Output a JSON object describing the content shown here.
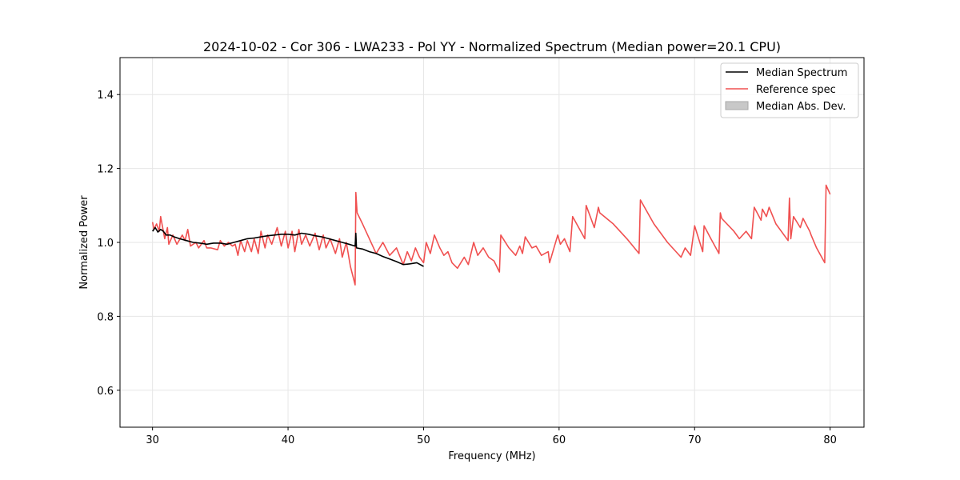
{
  "chart_data": {
    "type": "line",
    "title": "2024-10-02 - Cor 306 - LWA233 - Pol YY - Normalized Spectrum (Median power=20.1 CPU)",
    "xlabel": "Frequency (MHz)",
    "ylabel": "Normalized Power",
    "xlim": [
      27.6,
      82.5
    ],
    "ylim": [
      0.5,
      1.5
    ],
    "xticks": [
      30,
      40,
      50,
      60,
      70,
      80
    ],
    "xtick_labels": [
      "30",
      "40",
      "50",
      "60",
      "70",
      "80"
    ],
    "yticks": [
      0.6,
      0.8,
      1.0,
      1.2,
      1.4
    ],
    "ytick_labels": [
      "0.6",
      "0.8",
      "1.0",
      "1.2",
      "1.4"
    ],
    "grid": true,
    "legend": {
      "placement": "top-right",
      "entries": [
        "Median Spectrum",
        "Reference spec",
        "Median Abs. Dev."
      ]
    },
    "series": [
      {
        "name": "Median Spectrum",
        "color": "#000000",
        "x": [
          30.0,
          30.2,
          30.4,
          30.6,
          30.8,
          31.0,
          31.3,
          31.6,
          32.0,
          32.5,
          33.0,
          33.5,
          34.0,
          34.5,
          35.0,
          35.5,
          36.0,
          36.5,
          37.0,
          37.5,
          38.0,
          38.5,
          39.0,
          39.5,
          40.0,
          40.5,
          41.0,
          41.5,
          42.0,
          42.5,
          43.0,
          43.5,
          44.0,
          44.5,
          44.95,
          45.0,
          45.05,
          45.5,
          46.0,
          46.5,
          47.0,
          47.5,
          48.0,
          48.5,
          49.0,
          49.5,
          50.0
        ],
        "y": [
          1.03,
          1.04,
          1.028,
          1.035,
          1.03,
          1.02,
          1.02,
          1.015,
          1.01,
          1.005,
          1.0,
          0.998,
          0.995,
          0.998,
          0.998,
          0.995,
          1.0,
          1.005,
          1.01,
          1.012,
          1.015,
          1.018,
          1.02,
          1.022,
          1.022,
          1.02,
          1.025,
          1.022,
          1.018,
          1.015,
          1.01,
          1.005,
          1.0,
          0.995,
          0.99,
          1.025,
          0.985,
          0.982,
          0.975,
          0.97,
          0.962,
          0.955,
          0.948,
          0.94,
          0.942,
          0.945,
          0.935
        ]
      },
      {
        "name": "Reference spec",
        "color": "#f05050",
        "x": [
          30.0,
          30.1,
          30.3,
          30.5,
          30.6,
          30.9,
          31.1,
          31.2,
          31.5,
          31.8,
          32.2,
          32.4,
          32.6,
          32.8,
          33.2,
          33.4,
          33.8,
          34.0,
          34.3,
          34.8,
          35.0,
          35.3,
          35.6,
          35.9,
          36.1,
          36.3,
          36.5,
          36.8,
          37.0,
          37.3,
          37.5,
          37.8,
          38.0,
          38.3,
          38.5,
          38.8,
          39.2,
          39.5,
          39.8,
          40.0,
          40.3,
          40.5,
          40.8,
          41.0,
          41.3,
          41.6,
          42.0,
          42.3,
          42.6,
          42.8,
          43.1,
          43.5,
          43.8,
          44.0,
          44.3,
          44.6,
          44.95,
          45.0,
          45.1,
          45.5,
          46.0,
          46.5,
          47.0,
          47.5,
          48.0,
          48.5,
          48.8,
          49.1,
          49.4,
          49.7,
          50.0,
          50.2,
          50.5,
          50.8,
          51.2,
          51.5,
          51.8,
          52.1,
          52.5,
          53.0,
          53.3,
          53.7,
          54.0,
          54.4,
          54.8,
          55.2,
          55.6,
          55.7,
          56.3,
          56.8,
          57.1,
          57.3,
          57.5,
          58.0,
          58.3,
          58.7,
          59.2,
          59.3,
          59.9,
          60.1,
          60.4,
          60.8,
          61.0,
          61.9,
          62.0,
          62.6,
          62.9,
          63.0,
          64.0,
          65.0,
          65.9,
          66.0,
          67.0,
          68.0,
          69.0,
          69.3,
          69.7,
          70.0,
          70.6,
          70.7,
          71.2,
          71.8,
          71.9,
          72.0,
          72.9,
          73.3,
          73.8,
          74.2,
          74.4,
          74.9,
          75.0,
          75.3,
          75.5,
          76.0,
          76.9,
          77.0,
          77.1,
          77.3,
          77.8,
          78.0,
          78.5,
          78.6,
          79.0,
          79.6,
          79.7,
          80.0
        ],
        "y": [
          1.055,
          1.035,
          1.05,
          1.03,
          1.07,
          1.01,
          1.04,
          0.995,
          1.02,
          0.995,
          1.02,
          1.005,
          1.035,
          0.99,
          1.0,
          0.985,
          1.005,
          0.985,
          0.985,
          0.98,
          1.005,
          0.99,
          1.0,
          0.99,
          0.995,
          0.965,
          1.005,
          0.975,
          1.005,
          0.975,
          1.01,
          0.97,
          1.03,
          0.985,
          1.02,
          0.995,
          1.04,
          0.99,
          1.03,
          0.985,
          1.03,
          0.975,
          1.035,
          0.995,
          1.02,
          0.99,
          1.025,
          0.98,
          1.02,
          0.985,
          1.01,
          0.97,
          1.01,
          0.96,
          1.0,
          0.935,
          0.885,
          1.135,
          1.08,
          1.05,
          1.01,
          0.97,
          1.0,
          0.965,
          0.985,
          0.94,
          0.975,
          0.95,
          0.985,
          0.96,
          0.945,
          1.0,
          0.97,
          1.02,
          0.985,
          0.965,
          0.975,
          0.945,
          0.93,
          0.96,
          0.94,
          1.0,
          0.965,
          0.985,
          0.96,
          0.95,
          0.92,
          1.02,
          0.985,
          0.965,
          0.99,
          0.97,
          1.015,
          0.985,
          0.99,
          0.965,
          0.975,
          0.945,
          1.02,
          0.995,
          1.01,
          0.975,
          1.07,
          1.01,
          1.1,
          1.04,
          1.095,
          1.08,
          1.05,
          1.01,
          0.97,
          1.115,
          1.05,
          1.0,
          0.96,
          0.985,
          0.965,
          1.045,
          0.975,
          1.045,
          1.01,
          0.97,
          1.08,
          1.065,
          1.03,
          1.01,
          1.03,
          1.01,
          1.095,
          1.06,
          1.09,
          1.07,
          1.095,
          1.05,
          1.005,
          1.12,
          1.01,
          1.07,
          1.04,
          1.065,
          1.03,
          1.02,
          0.985,
          0.945,
          1.155,
          1.13
        ]
      }
    ]
  }
}
